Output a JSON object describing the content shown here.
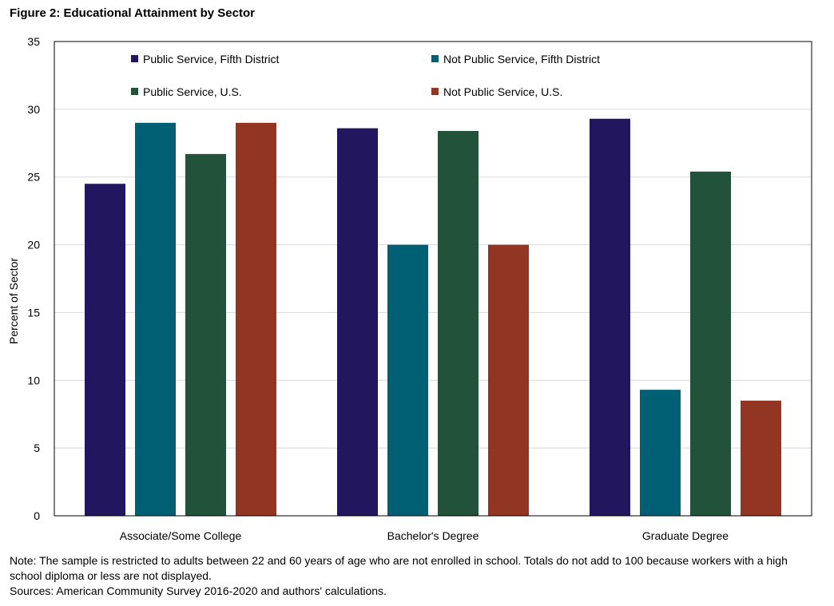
{
  "figure": {
    "title": "Figure 2: Educational Attainment by Sector",
    "note": "Note: The sample is restricted to adults between 22 and 60  years of age who are not enrolled in school. Totals do not add to 100 because workers with a high school diploma or less are not displayed.",
    "sources": "Sources: American Community Survey 2016-2020 and authors' calculations."
  },
  "chart_data": {
    "type": "bar",
    "title": "Figure 2: Educational Attainment by Sector",
    "xlabel": "",
    "ylabel": "Percent of Sector",
    "ylim": [
      0,
      35
    ],
    "yticks": [
      0,
      5,
      10,
      15,
      20,
      25,
      30,
      35
    ],
    "grid": true,
    "legend_position": "top",
    "categories": [
      "Associate/Some College",
      "Bachelor's Degree",
      "Graduate Degree"
    ],
    "series": [
      {
        "name": "Public Service, Fifth District",
        "color": "#22175e",
        "values": [
          24.5,
          28.6,
          29.3
        ]
      },
      {
        "name": "Not Public Service, Fifth District",
        "color": "#005f73",
        "values": [
          29.0,
          20.0,
          9.3
        ]
      },
      {
        "name": "Public Service, U.S.",
        "color": "#23523a",
        "values": [
          26.7,
          28.4,
          25.4
        ]
      },
      {
        "name": "Not Public Service, U.S.",
        "color": "#923522",
        "values": [
          29.0,
          20.0,
          8.5
        ]
      }
    ]
  }
}
